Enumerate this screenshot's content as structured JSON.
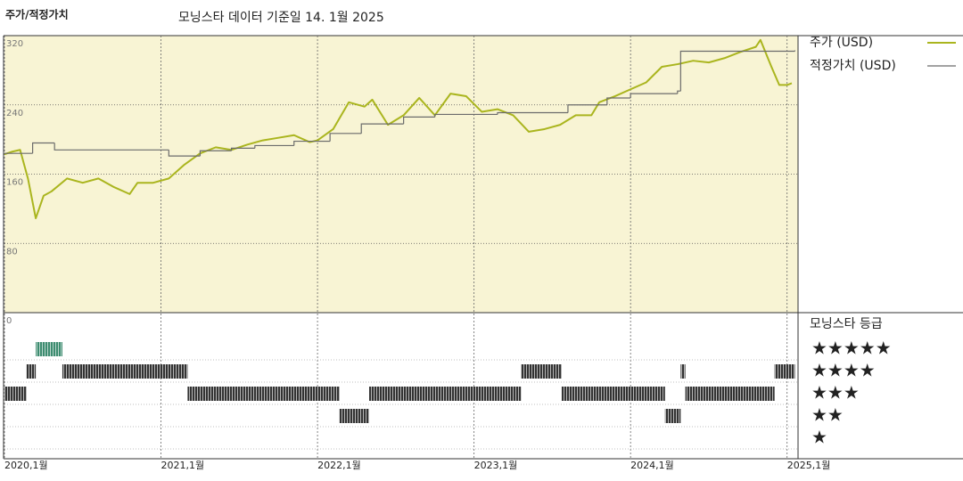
{
  "chart_data": {
    "type": "line",
    "title": "주가/적정가치",
    "subtitle": "모닝스타 데이터 기준일 14. 1월 2025",
    "xlim": [
      2020,
      2025.07
    ],
    "xticks": [
      {
        "value": 2020,
        "label": "2020,1월"
      },
      {
        "value": 2021,
        "label": "2021,1월"
      },
      {
        "value": 2022,
        "label": "2022,1월"
      },
      {
        "value": 2023,
        "label": "2023,1월"
      },
      {
        "value": 2024,
        "label": "2024,1월"
      },
      {
        "value": 2025,
        "label": "2025,1월"
      }
    ],
    "ylim": [
      0,
      320
    ],
    "yticks": [
      0,
      80,
      160,
      240,
      320
    ],
    "grid": true,
    "background": "#f8f4d4",
    "series": [
      {
        "name": "주가 (USD)",
        "color": "#aab51e",
        "x": [
          2020.0,
          2020.05,
          2020.1,
          2020.15,
          2020.2,
          2020.25,
          2020.3,
          2020.4,
          2020.5,
          2020.6,
          2020.7,
          2020.8,
          2020.85,
          2020.95,
          2021.05,
          2021.15,
          2021.25,
          2021.35,
          2021.45,
          2021.55,
          2021.65,
          2021.75,
          2021.85,
          2021.95,
          2022.0,
          2022.1,
          2022.2,
          2022.3,
          2022.35,
          2022.45,
          2022.55,
          2022.65,
          2022.75,
          2022.85,
          2022.95,
          2023.05,
          2023.15,
          2023.25,
          2023.35,
          2023.45,
          2023.55,
          2023.65,
          2023.75,
          2023.8,
          2023.9,
          2024.0,
          2024.1,
          2024.2,
          2024.3,
          2024.4,
          2024.5,
          2024.6,
          2024.7,
          2024.8,
          2024.83,
          2024.9,
          2024.95,
          2025.0,
          2025.03
        ],
        "values": [
          183,
          186,
          188,
          155,
          109,
          135,
          140,
          155,
          150,
          155,
          145,
          137,
          150,
          150,
          155,
          171,
          184,
          191,
          188,
          194,
          199,
          202,
          205,
          197,
          199,
          212,
          243,
          238,
          246,
          217,
          228,
          248,
          228,
          253,
          250,
          232,
          235,
          228,
          209,
          212,
          217,
          228,
          228,
          243,
          250,
          258,
          266,
          284,
          287,
          291,
          289,
          294,
          301,
          307,
          315,
          284,
          263,
          263,
          265
        ]
      },
      {
        "name": "적정가치 (USD)",
        "color": "#6b6b6b",
        "step": true,
        "x": [
          2020.0,
          2020.18,
          2020.32,
          2021.05,
          2021.25,
          2021.45,
          2021.6,
          2021.85,
          2022.0,
          2022.08,
          2022.28,
          2022.55,
          2022.75,
          2023.15,
          2023.6,
          2023.85,
          2024.0,
          2024.3,
          2024.32,
          2025.05
        ],
        "values": [
          184,
          196,
          188,
          181,
          187,
          190,
          193,
          198,
          198,
          207,
          218,
          226,
          229,
          231,
          240,
          248,
          253,
          256,
          302,
          303
        ]
      }
    ],
    "ratings": {
      "name": "모닝스타 등급",
      "labels": [
        "★★★★★",
        "★★★★",
        "★★★",
        "★★",
        "★"
      ],
      "colors": [
        "#3d8c70",
        "#333333",
        "#333333",
        "#333333",
        "#333333"
      ],
      "edges": [
        2020.0,
        2020.14,
        2020.2,
        2020.37,
        2021.17,
        2022.14,
        2022.33,
        2023.3,
        2023.56,
        2024.22,
        2024.32,
        2024.35,
        2024.92,
        2025.05
      ],
      "values": [
        3,
        4,
        5,
        4,
        3,
        2,
        3,
        4,
        3,
        2,
        4,
        3,
        4
      ]
    }
  }
}
